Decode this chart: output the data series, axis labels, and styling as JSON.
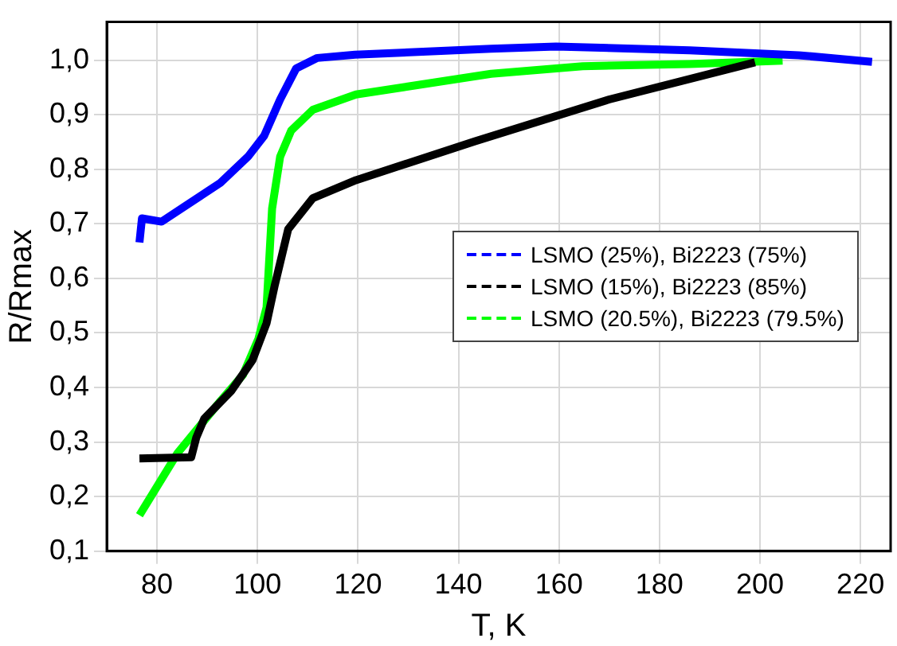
{
  "chart_data": {
    "type": "line",
    "xlabel": "T, K",
    "ylabel": "R/Rmax",
    "xlim": [
      70,
      226
    ],
    "xticks": [
      80,
      100,
      120,
      140,
      160,
      180,
      200,
      220
    ],
    "ylim": [
      0.1,
      1.07
    ],
    "yticks": [
      {
        "value": 0.1,
        "label": "0,1"
      },
      {
        "value": 0.2,
        "label": "0,2"
      },
      {
        "value": 0.3,
        "label": "0,3"
      },
      {
        "value": 0.4,
        "label": "0,4"
      },
      {
        "value": 0.5,
        "label": "0,5"
      },
      {
        "value": 0.6,
        "label": "0,6"
      },
      {
        "value": 0.7,
        "label": "0,7"
      },
      {
        "value": 0.8,
        "label": "0,8"
      },
      {
        "value": 0.9,
        "label": "0,9"
      },
      {
        "value": 1.0,
        "label": "1,0"
      }
    ],
    "grid": true,
    "legend": "right",
    "marker": "none",
    "line_style": "solid",
    "series": [
      {
        "name": "LSMO (25%), Bi2223 (75%)",
        "color": "#0000ff",
        "x": [
          76.5,
          77,
          80.9,
          92.6,
          98.1,
          101.3,
          104.5,
          107.7,
          111.9,
          119.4,
          146.5,
          159.4,
          186,
          207.7,
          222.3
        ],
        "values": [
          0.666,
          0.71,
          0.704,
          0.775,
          0.823,
          0.861,
          0.928,
          0.985,
          1.004,
          1.01,
          1.021,
          1.025,
          1.018,
          1.009,
          0.997
        ]
      },
      {
        "name": "LSMO (15%), Bi2223 (85%)",
        "color": "#000000",
        "x": [
          76.5,
          86.8,
          87.8,
          89.4,
          94.8,
          99,
          101.8,
          103.4,
          106.1,
          111,
          119.6,
          143.2,
          170,
          199
        ],
        "values": [
          0.27,
          0.272,
          0.308,
          0.343,
          0.394,
          0.45,
          0.518,
          0.586,
          0.69,
          0.747,
          0.78,
          0.851,
          0.928,
          0.996
        ]
      },
      {
        "name": "LSMO (20.5%), Bi2223 (79.5%)",
        "color": "#00ff00",
        "x": [
          76.5,
          84.1,
          92.6,
          97.1,
          100.2,
          101.8,
          102.9,
          104.5,
          106.7,
          111,
          119.6,
          146.5,
          164.7,
          186,
          204.5
        ],
        "values": [
          0.166,
          0.28,
          0.375,
          0.423,
          0.49,
          0.547,
          0.728,
          0.823,
          0.871,
          0.909,
          0.937,
          0.975,
          0.989,
          0.993,
          0.999
        ]
      }
    ]
  }
}
